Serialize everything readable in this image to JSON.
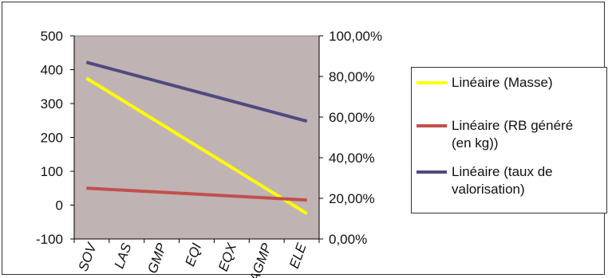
{
  "chart_data": {
    "type": "line",
    "categories": [
      "SOV",
      "LAS",
      "GMP",
      "EQI",
      "EQX",
      "AGMP",
      "ELE"
    ],
    "y_left": {
      "ticks": [
        "500",
        "400",
        "300",
        "200",
        "100",
        "0",
        "-100"
      ],
      "ylim": [
        -100,
        500
      ]
    },
    "y_right": {
      "ticks": [
        "100,00%",
        "80,00%",
        "60,00%",
        "40,00%",
        "20,00%",
        "0,00%"
      ],
      "ylim": [
        0,
        1
      ]
    },
    "series": [
      {
        "name": "Linéaire (Masse)",
        "axis": "left",
        "color": "#ffff00",
        "start": 375,
        "end": -25
      },
      {
        "name": "Linéaire (RB généré (en kg))",
        "axis": "left",
        "color": "#c0504d",
        "start": 50,
        "end": 15
      },
      {
        "name": "Linéaire (taux de valorisation)",
        "axis": "right",
        "color": "#4f4a80",
        "start": 0.87,
        "end": 0.58
      }
    ],
    "plot_background": "#c0b3b3",
    "legend_position": "right"
  },
  "legend": {
    "items": [
      {
        "lines": [
          "Linéaire (Masse)"
        ],
        "color": "#ffff00"
      },
      {
        "lines": [
          "Linéaire (RB généré",
          "(en kg))"
        ],
        "color": "#c0504d"
      },
      {
        "lines": [
          "Linéaire (taux de",
          "valorisation)"
        ],
        "color": "#4f4a80"
      }
    ]
  }
}
